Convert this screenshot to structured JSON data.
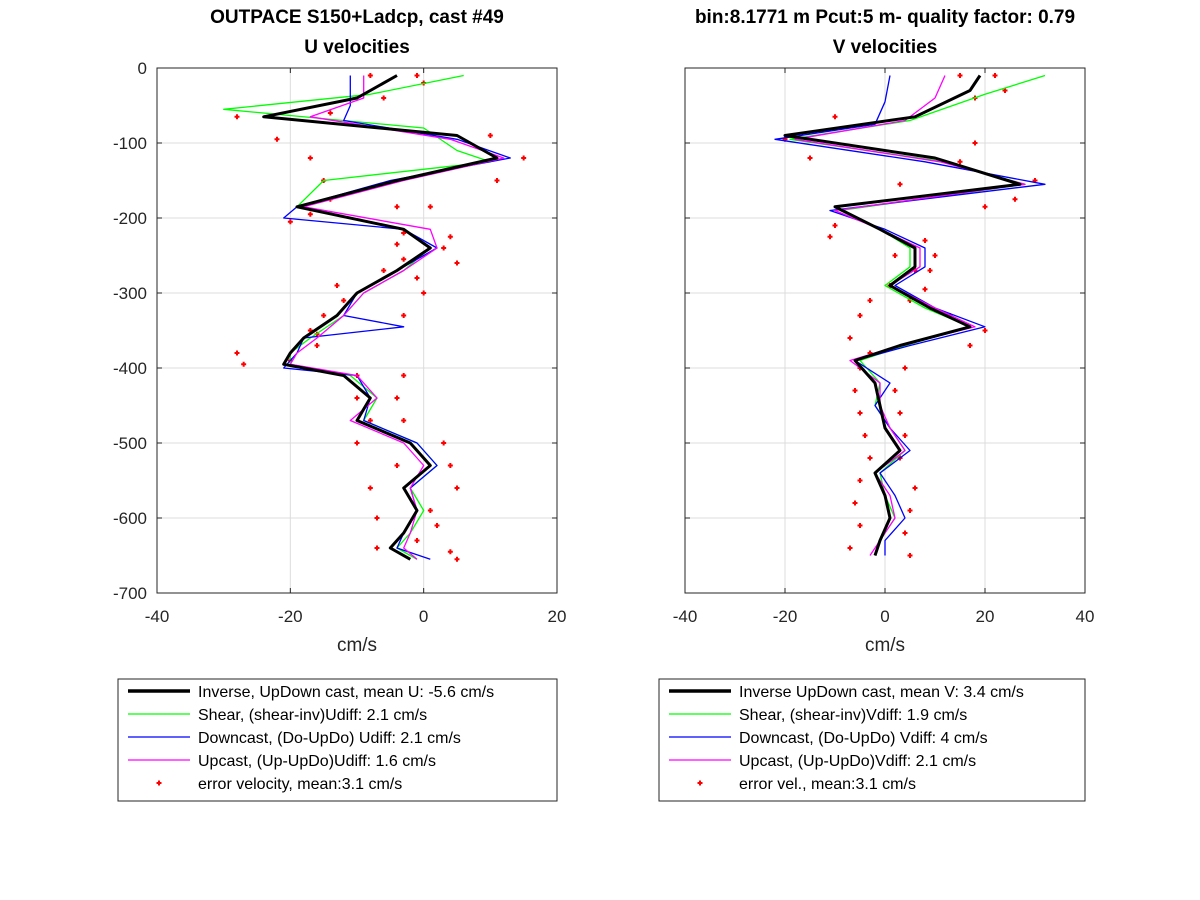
{
  "chart_data": [
    {
      "type": "line",
      "title": "OUTPACE S150+Ladcp, cast #49",
      "subtitle": "U velocities",
      "xlabel": "cm/s",
      "ylabel": "",
      "xlim": [
        -40,
        20
      ],
      "ylim": [
        -700,
        0
      ],
      "xticks": [
        "-40",
        "-20",
        "0",
        "20"
      ],
      "yticks": [
        "0",
        "-100",
        "-200",
        "-300",
        "-400",
        "-500",
        "-600",
        "-700"
      ],
      "grid": true,
      "legend_position": "below",
      "series": [
        {
          "name": "Inverse, UpDown cast, mean U:  -5.6 cm/s",
          "color": "#000000",
          "y": [
            -10,
            -40,
            -65,
            -90,
            -120,
            -150,
            -185,
            -215,
            -240,
            -270,
            -300,
            -330,
            -360,
            -380,
            -395,
            -410,
            -440,
            -470,
            -500,
            -530,
            -560,
            -590,
            -620,
            -640,
            -655
          ],
          "x": [
            -4,
            -10,
            -24,
            5,
            11,
            -4,
            -19,
            -3,
            1,
            -4,
            -10,
            -13,
            -18,
            -20,
            -21,
            -12,
            -8,
            -10,
            -2,
            1,
            -3,
            -1,
            -3,
            -5,
            -2
          ]
        },
        {
          "name": "Shear, (shear-inv)Udiff:  2.1 cm/s",
          "color": "#00ff00",
          "y": [
            -10,
            -35,
            -55,
            -80,
            -110,
            -125,
            -150,
            -185,
            -215,
            -240,
            -270,
            -300,
            -330,
            -360,
            -380,
            -395,
            -410,
            -440,
            -470,
            -500,
            -530,
            -560,
            -590,
            -620,
            -640,
            -655
          ],
          "x": [
            6,
            -8,
            -30,
            0,
            5,
            10,
            -15,
            -19,
            -3,
            1,
            -3,
            -9,
            -12,
            -17,
            -20,
            -20,
            -11,
            -7,
            -9,
            -1,
            2,
            -2,
            0,
            -2,
            -4,
            -1
          ]
        },
        {
          "name": "Downcast, (Do-UpDo) Udiff:  2.1 cm/s",
          "color": "#0000ff",
          "y": [
            -10,
            -50,
            -70,
            -95,
            -120,
            -150,
            -185,
            -200,
            -215,
            -240,
            -270,
            -300,
            -330,
            -345,
            -360,
            -380,
            -400,
            -410,
            -440,
            -470,
            -500,
            -530,
            -560,
            -590,
            -620,
            -640,
            -655
          ],
          "x": [
            -11,
            -11,
            -12,
            5,
            13,
            -5,
            -19,
            -21,
            -3,
            2,
            -4,
            -10,
            -12,
            -3,
            -18,
            -19,
            -21,
            -10,
            -8,
            -9,
            -1,
            2,
            -2,
            -1,
            -3,
            -4,
            1
          ]
        },
        {
          "name": "Upcast, (Up-UpDo)Udiff:  1.6 cm/s",
          "color": "#ff00ff",
          "y": [
            -10,
            -40,
            -65,
            -95,
            -120,
            -150,
            -185,
            -215,
            -240,
            -270,
            -300,
            -330,
            -360,
            -380,
            -395,
            -410,
            -440,
            -470,
            -500,
            -530,
            -560,
            -590,
            -620,
            -640,
            -655
          ],
          "x": [
            -9,
            -9,
            -17,
            4,
            12,
            -3,
            -18,
            1,
            2,
            -3,
            -9,
            -12,
            -16,
            -19,
            -20,
            -10,
            -7,
            -11,
            -3,
            0,
            -2,
            -1,
            -2,
            -3,
            -1
          ]
        }
      ],
      "error_series": {
        "name": "error velocity, mean:3.1 cm/s",
        "color": "#ff0000",
        "left_x": [
          -8,
          -6,
          -14,
          -28,
          -22,
          -17,
          -15,
          1,
          -14,
          -17,
          -3,
          -4,
          -3,
          -6,
          -13,
          -12,
          -15,
          -16,
          -28,
          -27,
          -10,
          -10,
          -8,
          -10,
          -4,
          -8,
          -7,
          -7
        ],
        "left_y": [
          -10,
          -40,
          -60,
          -65,
          -95,
          -120,
          -150,
          -185,
          -175,
          -195,
          -220,
          -235,
          -255,
          -270,
          -290,
          -310,
          -330,
          -355,
          -380,
          -395,
          -410,
          -440,
          -470,
          -500,
          -530,
          -560,
          -600,
          -640
        ],
        "right_x": [
          -1,
          0,
          10,
          15,
          11,
          -4,
          -20,
          4,
          3,
          5,
          -1,
          0,
          -3,
          -17,
          -16,
          -20,
          -3,
          -4,
          -3,
          3,
          4,
          5,
          1,
          2,
          -1,
          4,
          5
        ],
        "right_y": [
          -10,
          -20,
          -90,
          -120,
          -150,
          -185,
          -205,
          -225,
          -240,
          -260,
          -280,
          -300,
          -330,
          -350,
          -370,
          -390,
          -410,
          -440,
          -470,
          -500,
          -530,
          -560,
          -590,
          -610,
          -630,
          -645,
          -655
        ]
      }
    },
    {
      "type": "line",
      "title": "bin:8.1771 m  Pcut:5 m- quality factor:  0.79",
      "subtitle": "V velocities",
      "xlabel": "cm/s",
      "ylabel": "",
      "xlim": [
        -40,
        40
      ],
      "ylim": [
        -700,
        0
      ],
      "xticks": [
        "-40",
        "-20",
        "0",
        "20",
        "40"
      ],
      "yticks": [],
      "grid": true,
      "legend_position": "below",
      "series": [
        {
          "name": "Inverse UpDown cast, mean V:  3.4 cm/s",
          "color": "#000000",
          "y": [
            -10,
            -30,
            -65,
            -90,
            -120,
            -155,
            -185,
            -215,
            -240,
            -265,
            -290,
            -320,
            -345,
            -370,
            -390,
            -420,
            -450,
            -480,
            -510,
            -540,
            -570,
            -600,
            -630,
            -650
          ],
          "x": [
            19,
            17,
            6,
            -20,
            10,
            27,
            -10,
            -1,
            6,
            6,
            1,
            9,
            17,
            3,
            -6,
            -2,
            -1,
            0,
            3,
            -2,
            0,
            1,
            -1,
            -2
          ]
        },
        {
          "name": "Shear, (shear-inv)Vdiff:  1.9 cm/s",
          "color": "#00ff00",
          "y": [
            -10,
            -35,
            -70,
            -95,
            -125,
            -155,
            -190,
            -215,
            -240,
            -265,
            -290,
            -320,
            -345,
            -370,
            -390,
            -420,
            -450,
            -480,
            -510,
            -540,
            -570,
            -600,
            -630,
            -650
          ],
          "x": [
            32,
            20,
            5,
            -19,
            12,
            28,
            -9,
            -1,
            5,
            5,
            0,
            8,
            17,
            4,
            -5,
            -1,
            -2,
            1,
            4,
            -1,
            0,
            2,
            -1,
            -2
          ]
        },
        {
          "name": "Downcast, (Do-UpDo) Vdiff:  4 cm/s",
          "color": "#0000ff",
          "y": [
            -10,
            -45,
            -75,
            -95,
            -125,
            -155,
            -190,
            -215,
            -240,
            -265,
            -290,
            -320,
            -345,
            -370,
            -390,
            -420,
            -450,
            -480,
            -510,
            -540,
            -570,
            -600,
            -630,
            -650
          ],
          "x": [
            1,
            0,
            -2,
            -22,
            8,
            32,
            -11,
            0,
            8,
            8,
            2,
            10,
            20,
            5,
            -6,
            1,
            -2,
            1,
            5,
            -1,
            2,
            4,
            0,
            0
          ]
        },
        {
          "name": "Upcast, (Up-UpDo)Vdiff:  2.1 cm/s",
          "color": "#ff00ff",
          "y": [
            -10,
            -40,
            -70,
            -95,
            -125,
            -155,
            -190,
            -215,
            -240,
            -265,
            -290,
            -320,
            -345,
            -370,
            -390,
            -420,
            -450,
            -480,
            -510,
            -540,
            -570,
            -600,
            -630,
            -650
          ],
          "x": [
            12,
            10,
            4,
            -18,
            11,
            28,
            -10,
            -1,
            7,
            7,
            1,
            10,
            18,
            3,
            -7,
            -1,
            -1,
            1,
            4,
            -2,
            1,
            2,
            -1,
            -3
          ]
        }
      ],
      "error_series": {
        "name": "error vel., mean:3.1 cm/s",
        "color": "#ff0000",
        "left_x": [
          15,
          18,
          -10,
          -20,
          -15,
          3,
          20,
          -10,
          -11,
          2,
          6,
          1,
          -3,
          -5,
          -7,
          -3,
          -5,
          -6,
          -5,
          -4,
          -3,
          -5,
          -6,
          -5,
          -7
        ],
        "left_y": [
          -10,
          -40,
          -65,
          -95,
          -120,
          -155,
          -185,
          -210,
          -225,
          -250,
          -270,
          -290,
          -310,
          -330,
          -360,
          -380,
          -400,
          -430,
          -460,
          -490,
          -520,
          -550,
          -580,
          -610,
          -640
        ],
        "right_x": [
          22,
          24,
          18,
          15,
          30,
          26,
          8,
          10,
          9,
          8,
          5,
          13,
          20,
          17,
          4,
          2,
          3,
          4,
          3,
          6,
          5,
          4,
          5
        ],
        "right_y": [
          -10,
          -30,
          -100,
          -125,
          -150,
          -175,
          -230,
          -250,
          -270,
          -295,
          -310,
          -330,
          -350,
          -370,
          -400,
          -430,
          -460,
          -490,
          -520,
          -560,
          -590,
          -620,
          -650
        ]
      }
    }
  ]
}
